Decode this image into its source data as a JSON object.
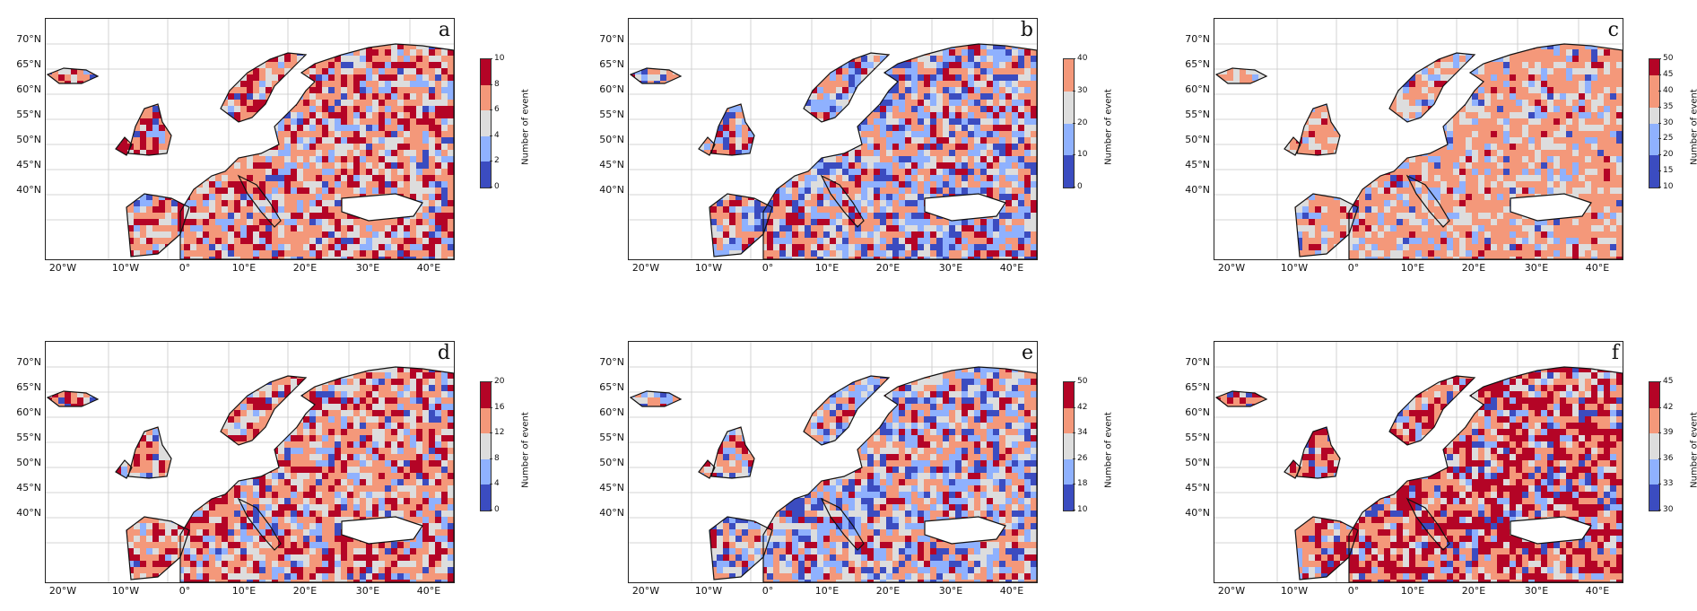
{
  "figure": {
    "lat_labels": [
      "70°N",
      "65°N",
      "60°N",
      "55°N",
      "50°N",
      "45°N",
      "40°N"
    ],
    "lon_labels": [
      "20°W",
      "10°W",
      "0°",
      "10°E",
      "20°E",
      "30°E",
      "40°E"
    ],
    "colorbar_title": "Number of event",
    "colors": [
      "#3b4cc0",
      "#8fb1fe",
      "#dddddd",
      "#f4987a",
      "#b40426"
    ]
  },
  "panels": [
    {
      "letter": "a",
      "ticks": [
        "0",
        "2",
        "4",
        "6",
        "8",
        "10"
      ],
      "palette": "warm"
    },
    {
      "letter": "b",
      "ticks": [
        "0",
        "10",
        "20",
        "30",
        "40"
      ],
      "palette": "mixed"
    },
    {
      "letter": "c",
      "ticks": [
        "10",
        "15",
        "20",
        "25",
        "30",
        "35",
        "40",
        "45",
        "50"
      ],
      "palette": "orange"
    },
    {
      "letter": "d",
      "ticks": [
        "0",
        "4",
        "8",
        "12",
        "16",
        "20"
      ],
      "palette": "warm"
    },
    {
      "letter": "e",
      "ticks": [
        "10",
        "18",
        "26",
        "34",
        "42",
        "50"
      ],
      "palette": "mixed"
    },
    {
      "letter": "f",
      "ticks": [
        "30",
        "33",
        "36",
        "39",
        "42",
        "45"
      ],
      "palette": "hot"
    }
  ]
}
